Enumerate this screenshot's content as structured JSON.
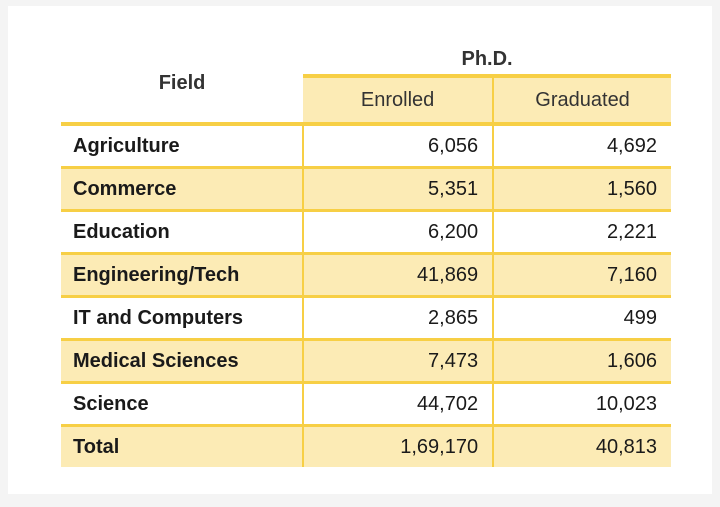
{
  "table": {
    "header": {
      "field": "Field",
      "group": "Ph.D.",
      "enrolled": "Enrolled",
      "graduated": "Graduated"
    },
    "rows": [
      {
        "field": "Agriculture",
        "enrolled": "6,056",
        "graduated": "4,692"
      },
      {
        "field": "Commerce",
        "enrolled": "5,351",
        "graduated": "1,560"
      },
      {
        "field": "Education",
        "enrolled": "6,200",
        "graduated": "2,221"
      },
      {
        "field": "Engineering/Tech",
        "enrolled": "41,869",
        "graduated": "7,160"
      },
      {
        "field": "IT and Computers",
        "enrolled": "2,865",
        "graduated": "499"
      },
      {
        "field": "Medical Sciences",
        "enrolled": "7,473",
        "graduated": "1,606"
      },
      {
        "field": "Science",
        "enrolled": "44,702",
        "graduated": "10,023"
      },
      {
        "field": "Total",
        "enrolled": "1,69,170",
        "graduated": "40,813"
      }
    ]
  },
  "colors": {
    "accent_border": "#f7cf45",
    "stripe_fill": "#fcebb5"
  }
}
